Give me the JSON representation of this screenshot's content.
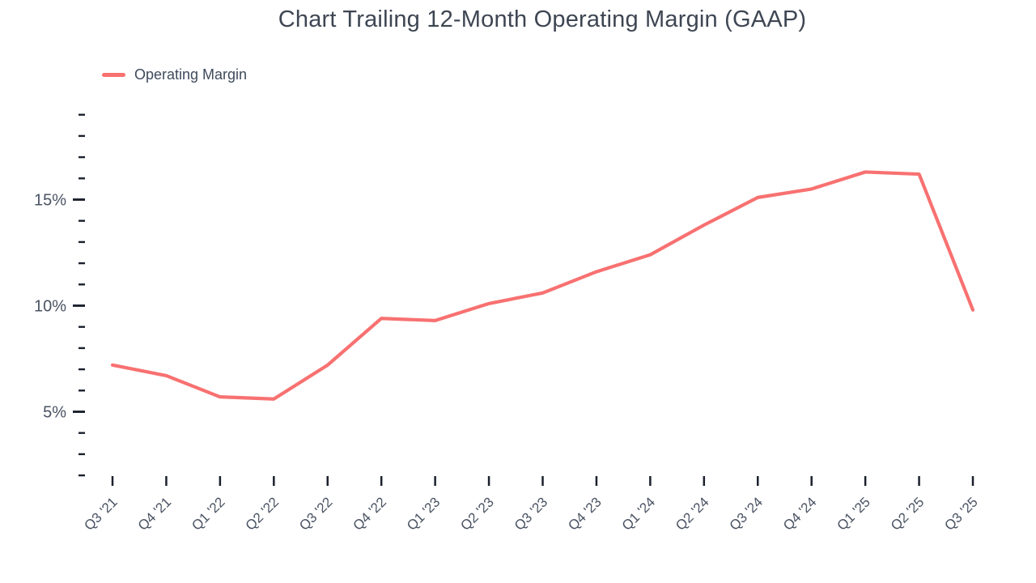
{
  "title": "Chart Trailing 12-Month Operating Margin (GAAP)",
  "legend": {
    "label": "Operating Margin"
  },
  "colors": {
    "line": "#f87171",
    "tick": "#1a202c",
    "axis_text": "#4a5363",
    "title_text": "#3e4653",
    "background": "#ffffff"
  },
  "chart_data": {
    "type": "line",
    "title": "Chart Trailing 12-Month Operating Margin (GAAP)",
    "xlabel": "",
    "ylabel": "",
    "grid": false,
    "legend_position": "top-left",
    "categories": [
      "Q3 '21",
      "Q4 '21",
      "Q1 '22",
      "Q2 '22",
      "Q3 '22",
      "Q4 '22",
      "Q1 '23",
      "Q2 '23",
      "Q3 '23",
      "Q4 '23",
      "Q1 '24",
      "Q2 '24",
      "Q3 '24",
      "Q4 '24",
      "Q1 '25",
      "Q2 '25",
      "Q3 '25"
    ],
    "series": [
      {
        "name": "Operating Margin",
        "values": [
          7.2,
          6.7,
          5.7,
          5.6,
          7.2,
          9.4,
          9.3,
          10.1,
          10.6,
          11.6,
          12.4,
          13.8,
          15.1,
          15.5,
          16.3,
          16.2,
          9.8
        ]
      }
    ],
    "y_axis": {
      "unit": "%",
      "labeled_ticks": [
        5,
        10,
        15
      ],
      "minor_tick_step": 1,
      "min_tick": 2,
      "max_tick": 19,
      "ylim": [
        1.5,
        19.5
      ]
    }
  }
}
